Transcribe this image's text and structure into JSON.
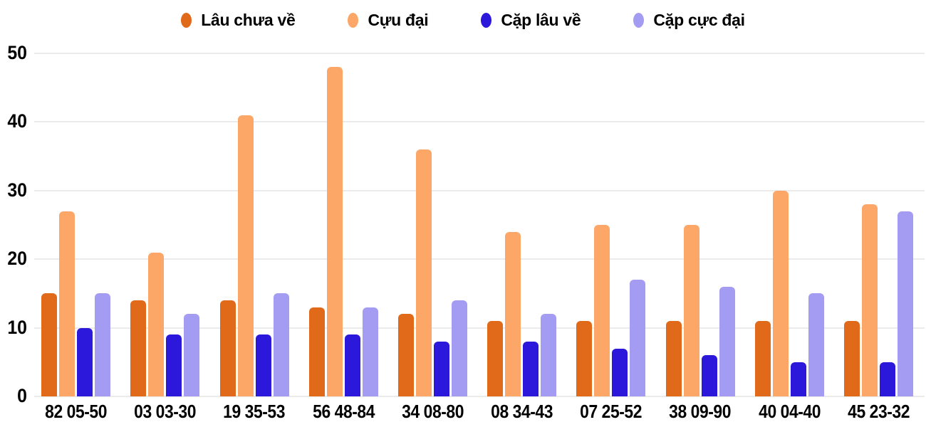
{
  "chart_data": {
    "type": "bar",
    "title": "",
    "xlabel": "",
    "ylabel": "",
    "ylim": [
      0,
      50
    ],
    "y_ticks": [
      0,
      10,
      20,
      30,
      40,
      50
    ],
    "grid": true,
    "legend_position": "top",
    "categories": [
      "82 05-50",
      "03 03-30",
      "19 35-53",
      "56 48-84",
      "34 08-80",
      "08 34-43",
      "07 25-52",
      "38 09-90",
      "40 04-40",
      "45 23-32"
    ],
    "series": [
      {
        "name": "Lâu chưa về",
        "color": "#e0691a",
        "values": [
          15,
          14,
          14,
          13,
          12,
          11,
          11,
          11,
          11,
          11
        ]
      },
      {
        "name": "Cựu đại",
        "color": "#fca768",
        "values": [
          27,
          21,
          41,
          48,
          36,
          24,
          25,
          25,
          30,
          28
        ]
      },
      {
        "name": "Cặp lâu về",
        "color": "#2b18db",
        "values": [
          10,
          9,
          9,
          9,
          8,
          8,
          7,
          6,
          5,
          5
        ]
      },
      {
        "name": "Cặp cực đại",
        "color": "#a49cf3",
        "values": [
          15,
          12,
          15,
          13,
          14,
          12,
          17,
          16,
          15,
          27
        ]
      }
    ],
    "colors": {
      "grid": "#ebebeb",
      "text": "#000000",
      "background": "#ffffff"
    }
  }
}
